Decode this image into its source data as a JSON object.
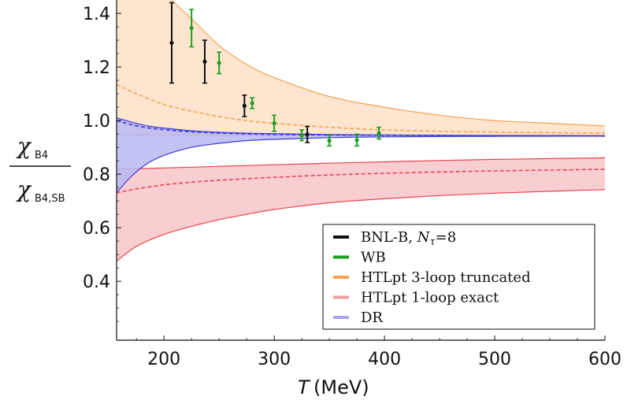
{
  "chart_data": {
    "type": "line",
    "xlabel_symbol": "T",
    "xlabel_unit": "(MeV)",
    "ylabel": {
      "numerator": "χ",
      "numerator_sub": "B4",
      "denominator": "χ",
      "denominator_sub": "B4,SB"
    },
    "xlim": [
      157,
      600
    ],
    "ylim": [
      0.18,
      1.45
    ],
    "xticks": [
      200,
      300,
      400,
      500,
      600
    ],
    "yticks": [
      0.4,
      0.6,
      0.8,
      1.0,
      1.2,
      1.4
    ],
    "ytick_labels": [
      "0.4",
      "0.6",
      "0.8",
      "1.0",
      "1.2",
      "1.4"
    ],
    "bands": [
      {
        "name": "HTLpt 3-loop truncated",
        "color": "#f4a34f",
        "fill": "#fde1c7",
        "x": [
          157,
          175,
          200,
          225,
          250,
          275,
          300,
          350,
          400,
          450,
          500,
          550,
          600
        ],
        "upper": [
          1.75,
          1.62,
          1.48,
          1.38,
          1.28,
          1.21,
          1.16,
          1.09,
          1.05,
          1.02,
          1.0,
          0.99,
          0.98
        ],
        "lower": [
          0.945,
          0.945,
          0.945,
          0.945,
          0.945,
          0.945,
          0.945,
          0.945,
          0.945,
          0.945,
          0.945,
          0.945,
          0.945
        ],
        "center": [
          1.135,
          1.1,
          1.06,
          1.035,
          1.015,
          1.0,
          0.99,
          0.975,
          0.965,
          0.96,
          0.957,
          0.955,
          0.953
        ]
      },
      {
        "name": "HTLpt 1-loop exact",
        "color": "#e8434f",
        "fill": "#f8c6c9",
        "x": [
          157,
          175,
          200,
          225,
          250,
          275,
          300,
          350,
          400,
          450,
          500,
          550,
          600
        ],
        "upper": [
          0.818,
          0.82,
          0.823,
          0.826,
          0.829,
          0.832,
          0.835,
          0.841,
          0.846,
          0.851,
          0.855,
          0.858,
          0.861
        ],
        "lower": [
          0.475,
          0.53,
          0.575,
          0.605,
          0.63,
          0.65,
          0.668,
          0.693,
          0.708,
          0.72,
          0.729,
          0.736,
          0.742
        ],
        "center": [
          0.73,
          0.745,
          0.76,
          0.77,
          0.777,
          0.783,
          0.788,
          0.797,
          0.803,
          0.808,
          0.812,
          0.815,
          0.818
        ]
      },
      {
        "name": "DR",
        "color": "#3b3bd8",
        "fill": "#b9b9f3",
        "x": [
          157,
          170,
          185,
          200,
          225,
          250,
          275,
          300,
          350,
          400,
          500,
          600
        ],
        "upper": [
          1.01,
          0.995,
          0.98,
          0.972,
          0.962,
          0.956,
          0.953,
          0.951,
          0.948,
          0.946,
          0.944,
          0.943
        ],
        "lower": [
          0.73,
          0.79,
          0.84,
          0.87,
          0.9,
          0.915,
          0.925,
          0.93,
          0.936,
          0.939,
          0.941,
          0.942
        ],
        "center": [
          1.0,
          0.985,
          0.973,
          0.966,
          0.958,
          0.953,
          0.95,
          0.948,
          0.946,
          0.945,
          0.943,
          0.942
        ]
      }
    ],
    "series": [
      {
        "name": "BNL-B, N_τ=8",
        "color": "#111111",
        "points": [
          {
            "x": 207,
            "y": 1.29,
            "err": 0.15
          },
          {
            "x": 237,
            "y": 1.22,
            "err": 0.08
          },
          {
            "x": 273,
            "y": 1.055,
            "err": 0.04
          },
          {
            "x": 330,
            "y": 0.948,
            "err": 0.03
          }
        ]
      },
      {
        "name": "WB",
        "color": "#1f9e1f",
        "points": [
          {
            "x": 225,
            "y": 1.345,
            "err": 0.07
          },
          {
            "x": 250,
            "y": 1.215,
            "err": 0.04
          },
          {
            "x": 280,
            "y": 1.065,
            "err": 0.02
          },
          {
            "x": 300,
            "y": 0.99,
            "err": 0.03
          },
          {
            "x": 325,
            "y": 0.945,
            "err": 0.02
          },
          {
            "x": 350,
            "y": 0.925,
            "err": 0.02
          },
          {
            "x": 375,
            "y": 0.927,
            "err": 0.022
          },
          {
            "x": 395,
            "y": 0.953,
            "err": 0.022
          }
        ]
      }
    ],
    "legend": {
      "position": "bottom-right",
      "items": [
        {
          "label_main": "BNL-B, ",
          "label_sym": "N",
          "label_sub": "τ",
          "label_tail": "=8",
          "color": "#111111"
        },
        {
          "label_main": "WB",
          "color": "#1f9e1f"
        },
        {
          "label_main": "HTLpt 3-loop truncated",
          "color": "#f4a34f"
        },
        {
          "label_main": "HTLpt 1-loop exact",
          "color": "#f19ea3"
        },
        {
          "label_main": "DR",
          "color": "#a7a7f0"
        }
      ]
    },
    "grid": false
  }
}
